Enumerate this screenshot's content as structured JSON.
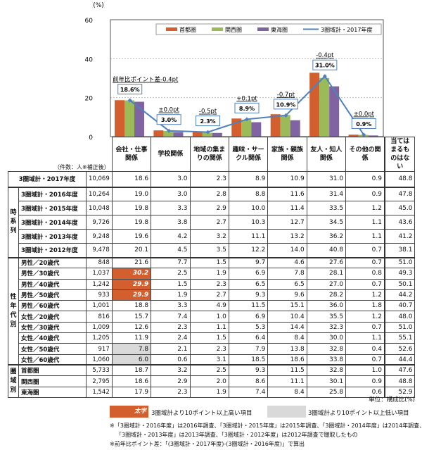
{
  "chart_data": {
    "type": "bar",
    "y_unit": "(%)",
    "ylim": [
      0,
      60
    ],
    "yticks": [
      0,
      20,
      40,
      60
    ],
    "categories": [
      "会社・仕事関係",
      "学校関係",
      "地域の集まりの関係",
      "趣味・サークル関係",
      "家族・親族関係",
      "友人・知人関係",
      "その他の関係"
    ],
    "series": [
      {
        "name": "首都圏",
        "color": "#d45f2e",
        "values": [
          18.7,
          3.2,
          2.5,
          9.3,
          11.5,
          32.8,
          1.0
        ]
      },
      {
        "name": "関西圏",
        "color": "#9bbb59",
        "values": [
          18.6,
          2.9,
          2.0,
          8.6,
          11.1,
          30.1,
          0.9
        ]
      },
      {
        "name": "東海圏",
        "color": "#8064a2",
        "values": [
          17.9,
          2.3,
          1.9,
          7.4,
          8.4,
          25.8,
          0.6
        ]
      }
    ],
    "line": {
      "name": "3圏域計・2017年度",
      "color": "#4f81bd",
      "values": [
        18.6,
        3.0,
        2.3,
        8.9,
        10.9,
        31.0,
        0.9
      ],
      "labels": [
        "18.6%",
        "3.0%",
        "2.3%",
        "8.9%",
        "10.9%",
        "31.0%",
        "0.9%"
      ],
      "diffs": [
        "前年比ポイント差-0.4pt",
        "±0.0pt",
        "-0.5pt",
        "+0.1pt",
        "-0.7pt",
        "-0.4pt",
        "±0.0pt"
      ]
    },
    "legend_position": "top-right",
    "grid": true
  },
  "table": {
    "count_header": "（件数：人※補正後）",
    "headers": [
      "会社・仕事関係",
      "学校関係",
      "地域の集まりの関係",
      "趣味・サークル関係",
      "家族・親族関係",
      "友人・知人関係",
      "その他の関係",
      "当てはまるものはない"
    ],
    "groups": [
      {
        "side": "",
        "rows": [
          {
            "label": "3圏域計・2017年度",
            "count": "10,069",
            "values": [
              "18.6",
              "3.0",
              "2.3",
              "8.9",
              "10.9",
              "31.0",
              "0.9",
              "48.8"
            ]
          }
        ]
      },
      {
        "side": "時系列",
        "rows": [
          {
            "label": "3圏域計・2016年度",
            "count": "10,264",
            "values": [
              "19.0",
              "3.0",
              "2.8",
              "8.8",
              "11.6",
              "31.4",
              "0.9",
              "47.8"
            ]
          },
          {
            "label": "3圏域計・2015年度",
            "count": "10,048",
            "values": [
              "19.8",
              "3.3",
              "2.9",
              "10.0",
              "11.4",
              "33.5",
              "1.2",
              "45.0"
            ]
          },
          {
            "label": "3圏域計・2014年度",
            "count": "9,726",
            "values": [
              "19.8",
              "3.8",
              "2.7",
              "10.3",
              "12.7",
              "34.5",
              "1.1",
              "43.6"
            ]
          },
          {
            "label": "3圏域計・2013年度",
            "count": "9,248",
            "values": [
              "19.6",
              "4.2",
              "3.2",
              "11.1",
              "13.2",
              "36.2",
              "1.1",
              "41.2"
            ]
          },
          {
            "label": "3圏域計・2012年度",
            "count": "9,478",
            "values": [
              "20.1",
              "4.5",
              "3.5",
              "12.2",
              "14.0",
              "40.8",
              "0.7",
              "38.1"
            ]
          }
        ]
      },
      {
        "side": "性年代別",
        "rows": [
          {
            "label": "男性／20歳代",
            "count": "848",
            "values": [
              "21.6",
              "7.7",
              "1.5",
              "9.7",
              "4.6",
              "27.6",
              "0.7",
              "51.0"
            ]
          },
          {
            "label": "男性／30歳代",
            "count": "1,037",
            "values": [
              "30.2",
              "2.5",
              "1.9",
              "6.9",
              "7.8",
              "28.1",
              "0.8",
              "49.3"
            ],
            "hi": [
              0
            ]
          },
          {
            "label": "男性／40歳代",
            "count": "1,242",
            "values": [
              "29.9",
              "1.5",
              "2.3",
              "6.5",
              "6.5",
              "27.0",
              "0.7",
              "50.1"
            ],
            "hi": [
              0
            ]
          },
          {
            "label": "男性／50歳代",
            "count": "933",
            "values": [
              "29.9",
              "1.9",
              "2.7",
              "9.3",
              "9.6",
              "28.2",
              "1.2",
              "44.2"
            ],
            "hi": [
              0
            ]
          },
          {
            "label": "男性／60歳代",
            "count": "1,001",
            "values": [
              "18.8",
              "3.3",
              "4.9",
              "11.5",
              "15.1",
              "36.0",
              "1.8",
              "40.7"
            ]
          },
          {
            "label": "女性／20歳代",
            "count": "816",
            "values": [
              "15.7",
              "7.4",
              "1.0",
              "6.9",
              "10.4",
              "35.5",
              "1.2",
              "48.0"
            ]
          },
          {
            "label": "女性／30歳代",
            "count": "1,009",
            "values": [
              "12.6",
              "2.3",
              "1.1",
              "5.3",
              "14.4",
              "32.3",
              "0.7",
              "51.0"
            ]
          },
          {
            "label": "女性／40歳代",
            "count": "1,205",
            "values": [
              "11.9",
              "2.4",
              "1.5",
              "6.4",
              "8.4",
              "30.0",
              "1.1",
              "55.1"
            ]
          },
          {
            "label": "女性／50歳代",
            "count": "917",
            "values": [
              "7.8",
              "2.1",
              "2.3",
              "7.9",
              "13.8",
              "32.8",
              "0.4",
              "52.6"
            ],
            "lo": [
              0
            ]
          },
          {
            "label": "女性／60歳代",
            "count": "1,060",
            "values": [
              "6.0",
              "0.6",
              "3.1",
              "18.5",
              "18.6",
              "33.8",
              "0.7",
              "44.4"
            ],
            "lo": [
              0
            ]
          }
        ]
      },
      {
        "side": "圏域別",
        "rows": [
          {
            "label": "首都圏",
            "count": "5,733",
            "values": [
              "18.7",
              "3.2",
              "2.5",
              "9.3",
              "11.5",
              "32.8",
              "1.0",
              "47.6"
            ]
          },
          {
            "label": "関西圏",
            "count": "2,795",
            "values": [
              "18.6",
              "2.9",
              "2.0",
              "8.6",
              "11.1",
              "30.1",
              "0.9",
              "48.8"
            ]
          },
          {
            "label": "東海圏",
            "count": "1,542",
            "values": [
              "17.9",
              "2.3",
              "1.9",
              "7.4",
              "8.4",
              "25.8",
              "0.6",
              "52.9"
            ]
          }
        ]
      }
    ]
  },
  "notes": {
    "unit": "単位：構成比(%)",
    "legend_hi_sample": "太字",
    "legend_hi": "3圏域計より10ポイント以上高い項目",
    "legend_lo": "3圏域計より10ポイント以上低い項目",
    "foot1": "※「3圏域計・2016年度」は2016年調査、「3圏域計・2015年度」は2015年調査、「3圏域計・2014年度」は2014年調査、",
    "foot2": "「3圏域計・2013年度」は2013年調査、「3圏域計・2012年度」は2012年調査で聴取したもの",
    "foot3": "※前年比ポイント差：「(3圏域計・2017年度)-(3圏域計・2016年度)」で算出"
  }
}
